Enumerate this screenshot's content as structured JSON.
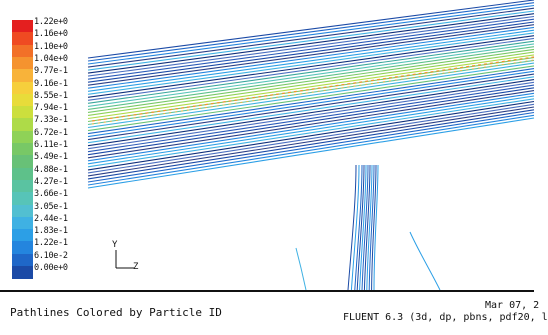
{
  "legend": {
    "colors": [
      "#e41f1f",
      "#ef4a22",
      "#f27028",
      "#f5932f",
      "#f8b33a",
      "#f6cf3c",
      "#e8dc3a",
      "#ccdf3d",
      "#aedb48",
      "#8fd257",
      "#78c866",
      "#68c177",
      "#5ec18a",
      "#5ac3a1",
      "#57c4b8",
      "#52bfd1",
      "#3fb1e3",
      "#2c9fe6",
      "#2485de",
      "#1f67c8",
      "#1b4aa6"
    ],
    "labels": [
      "1.22e+0",
      "1.16e+0",
      "1.10e+0",
      "1.04e+0",
      "9.77e-1",
      "9.16e-1",
      "8.55e-1",
      "7.94e-1",
      "7.33e-1",
      "6.72e-1",
      "6.11e-1",
      "5.49e-1",
      "4.88e-1",
      "4.27e-1",
      "3.66e-1",
      "3.05e-1",
      "2.44e-1",
      "1.83e-1",
      "1.22e-1",
      "6.10e-2",
      "0.00e+0"
    ]
  },
  "axes": {
    "y": "Y",
    "z": "Z"
  },
  "caption": {
    "title": "Pathlines Colored by Particle ID",
    "date": "Mar 07, 2",
    "version": "FLUENT 6.3 (3d, dp, pbns, pdf20, l"
  }
}
